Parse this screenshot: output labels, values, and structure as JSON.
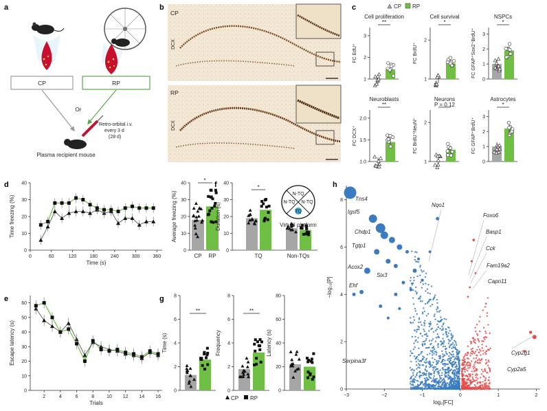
{
  "panel_labels": [
    "a",
    "b",
    "c",
    "d",
    "e",
    "f",
    "g",
    "h"
  ],
  "colors": {
    "cp": "#a6a6a6",
    "rp": "#6fbf44",
    "blue": "#3b7bbf",
    "red": "#e84a4a",
    "tissue": "#f1e3cf"
  },
  "panel_a": {
    "cp_label": "CP",
    "rp_label": "RP",
    "or": "Or",
    "injection": [
      "Retro-orbital i.v.",
      "every 3 d",
      "(28 d)"
    ],
    "recipient": "Plasma recipient mouse"
  },
  "panel_b": {
    "top_label": "CP",
    "bottom_label": "RP",
    "stain": "DCX"
  },
  "legend": {
    "cp": "CP",
    "rp": "RP"
  },
  "panel_c": [
    {
      "title": "Cell proliferation",
      "ylabel": "FC EdU⁺",
      "ticks": [
        "1",
        "2",
        "3"
      ],
      "sig": "**",
      "cp_mean": 0.95,
      "rp_mean": 1.45
    },
    {
      "title": "Cell survival",
      "ylabel": "FC BrdU⁺",
      "ticks": [
        "1",
        "2"
      ],
      "sig": "*",
      "cp_mean": 1.0,
      "rp_mean": 1.4
    },
    {
      "title": "NSPCs",
      "ylabel": "FC GFAP⁺Sox2⁺BrdU⁺",
      "ticks": [
        "0",
        "1",
        "2",
        "3"
      ],
      "sig": "*",
      "cp_mean": 1.0,
      "rp_mean": 1.9
    },
    {
      "title": "Neuroblasts",
      "ylabel": "FC DCX⁺",
      "ticks": [
        "1.0",
        "1.5",
        "2.0"
      ],
      "sig": "**",
      "cp_mean": 1.0,
      "rp_mean": 1.45
    },
    {
      "title": "Neurons",
      "ylabel": "FC BrdU⁺NeuN⁺",
      "ticks": [
        "1",
        "2"
      ],
      "sig": "P = 0.12",
      "cp_mean": 1.0,
      "rp_mean": 1.3
    },
    {
      "title": "Astrocytes",
      "ylabel": "FC GFAP⁺BrdU⁺",
      "ticks": [
        "0",
        "1",
        "2",
        "3"
      ],
      "sig": "*",
      "cp_mean": 1.0,
      "rp_mean": 2.2
    }
  ],
  "panel_d": {
    "ylabel": "Time freezing (%)",
    "xlabel": "Time (s)",
    "xticks": [
      "0",
      "60",
      "120",
      "180",
      "240",
      "300",
      "360"
    ],
    "yticks": [
      "0",
      "10",
      "20",
      "30",
      "40"
    ],
    "x": [
      30,
      50,
      70,
      90,
      110,
      130,
      150,
      170,
      190,
      210,
      230,
      250,
      270,
      290,
      310,
      330,
      350
    ],
    "cp": [
      6,
      14,
      23,
      19,
      22,
      23,
      23,
      22,
      24,
      22,
      23,
      16,
      19,
      19,
      15,
      17,
      17
    ],
    "rp": [
      15,
      17,
      28,
      28,
      28,
      31,
      30,
      27,
      25,
      24,
      24,
      23,
      25,
      26,
      25,
      25,
      25
    ],
    "bar_ylabel": "Average freezing (%)",
    "bar_yticks": [
      "0",
      "10",
      "20",
      "30",
      "40"
    ],
    "bar_labels": [
      "CP",
      "RP"
    ],
    "sig": "*",
    "cp_mean": 18,
    "rp_mean": 26
  },
  "panel_e": {
    "ylabel": "Escape latency (s)",
    "xlabel": "Trials",
    "xticks": [
      "2",
      "4",
      "6",
      "8",
      "10",
      "12",
      "14",
      "16"
    ],
    "yticks": [
      "0",
      "10",
      "20",
      "30",
      "40",
      "50",
      "60"
    ],
    "x": [
      1,
      2,
      3,
      4,
      5,
      6,
      7,
      8,
      9,
      10,
      11,
      12,
      13,
      14,
      15,
      16
    ],
    "cp": [
      56,
      48,
      44,
      40,
      46,
      35,
      24,
      33,
      30,
      28,
      27,
      25,
      24,
      22,
      26,
      24
    ],
    "rp": [
      58,
      60,
      50,
      40,
      42,
      32,
      20,
      34,
      28,
      27,
      28,
      26,
      25,
      23,
      27,
      25
    ]
  },
  "panel_f": {
    "ylabel": "Duration (s)",
    "yticks": [
      "0",
      "10",
      "20",
      "30",
      "40"
    ],
    "categories": [
      "TQ",
      "Non-TQs"
    ],
    "sig": "*",
    "tq_cp": 19,
    "tq_rp": 24,
    "ntq_cp": 13,
    "ntq_rp": 12,
    "quadrants": [
      "N-TQ",
      "N-TQ",
      "N-TQ",
      "TQ"
    ],
    "platform": "Virtual platform"
  },
  "panel_g": [
    {
      "ylabel": "Time (s)",
      "yticks": [
        "0",
        "2",
        "4",
        "6",
        "8"
      ],
      "sig": "**",
      "cp_mean": 1.3,
      "rp_mean": 2.6
    },
    {
      "ylabel": "Frequency",
      "yticks": [
        "0",
        "2",
        "4",
        "6",
        "8"
      ],
      "sig": "**",
      "cp_mean": 1.8,
      "rp_mean": 3.2
    },
    {
      "ylabel": "Latency (s)",
      "yticks": [
        "0",
        "20",
        "40",
        "60",
        "80"
      ],
      "sig": "",
      "cp_mean": 22,
      "rp_mean": 20
    }
  ],
  "panel_h": {
    "ylabel": "−log₁₀[P]",
    "xlabel": "log₂[FC]",
    "xticks": [
      "−3",
      "−2",
      "−1",
      "0",
      "1",
      "2"
    ],
    "yticks": [
      "0",
      "2",
      "4",
      "6",
      "8"
    ],
    "genes_down": [
      "Tns4",
      "Igsf5",
      "Chdp1",
      "Tgtp1",
      "Acox2",
      "Six3",
      "Ehf",
      "Serpina3f"
    ],
    "genes_up": [
      "Nqo1",
      "Foxo6",
      "Basp1",
      "Cck",
      "Fam19a2",
      "Capn11",
      "Cyp2g1",
      "Cyp2a5"
    ]
  }
}
